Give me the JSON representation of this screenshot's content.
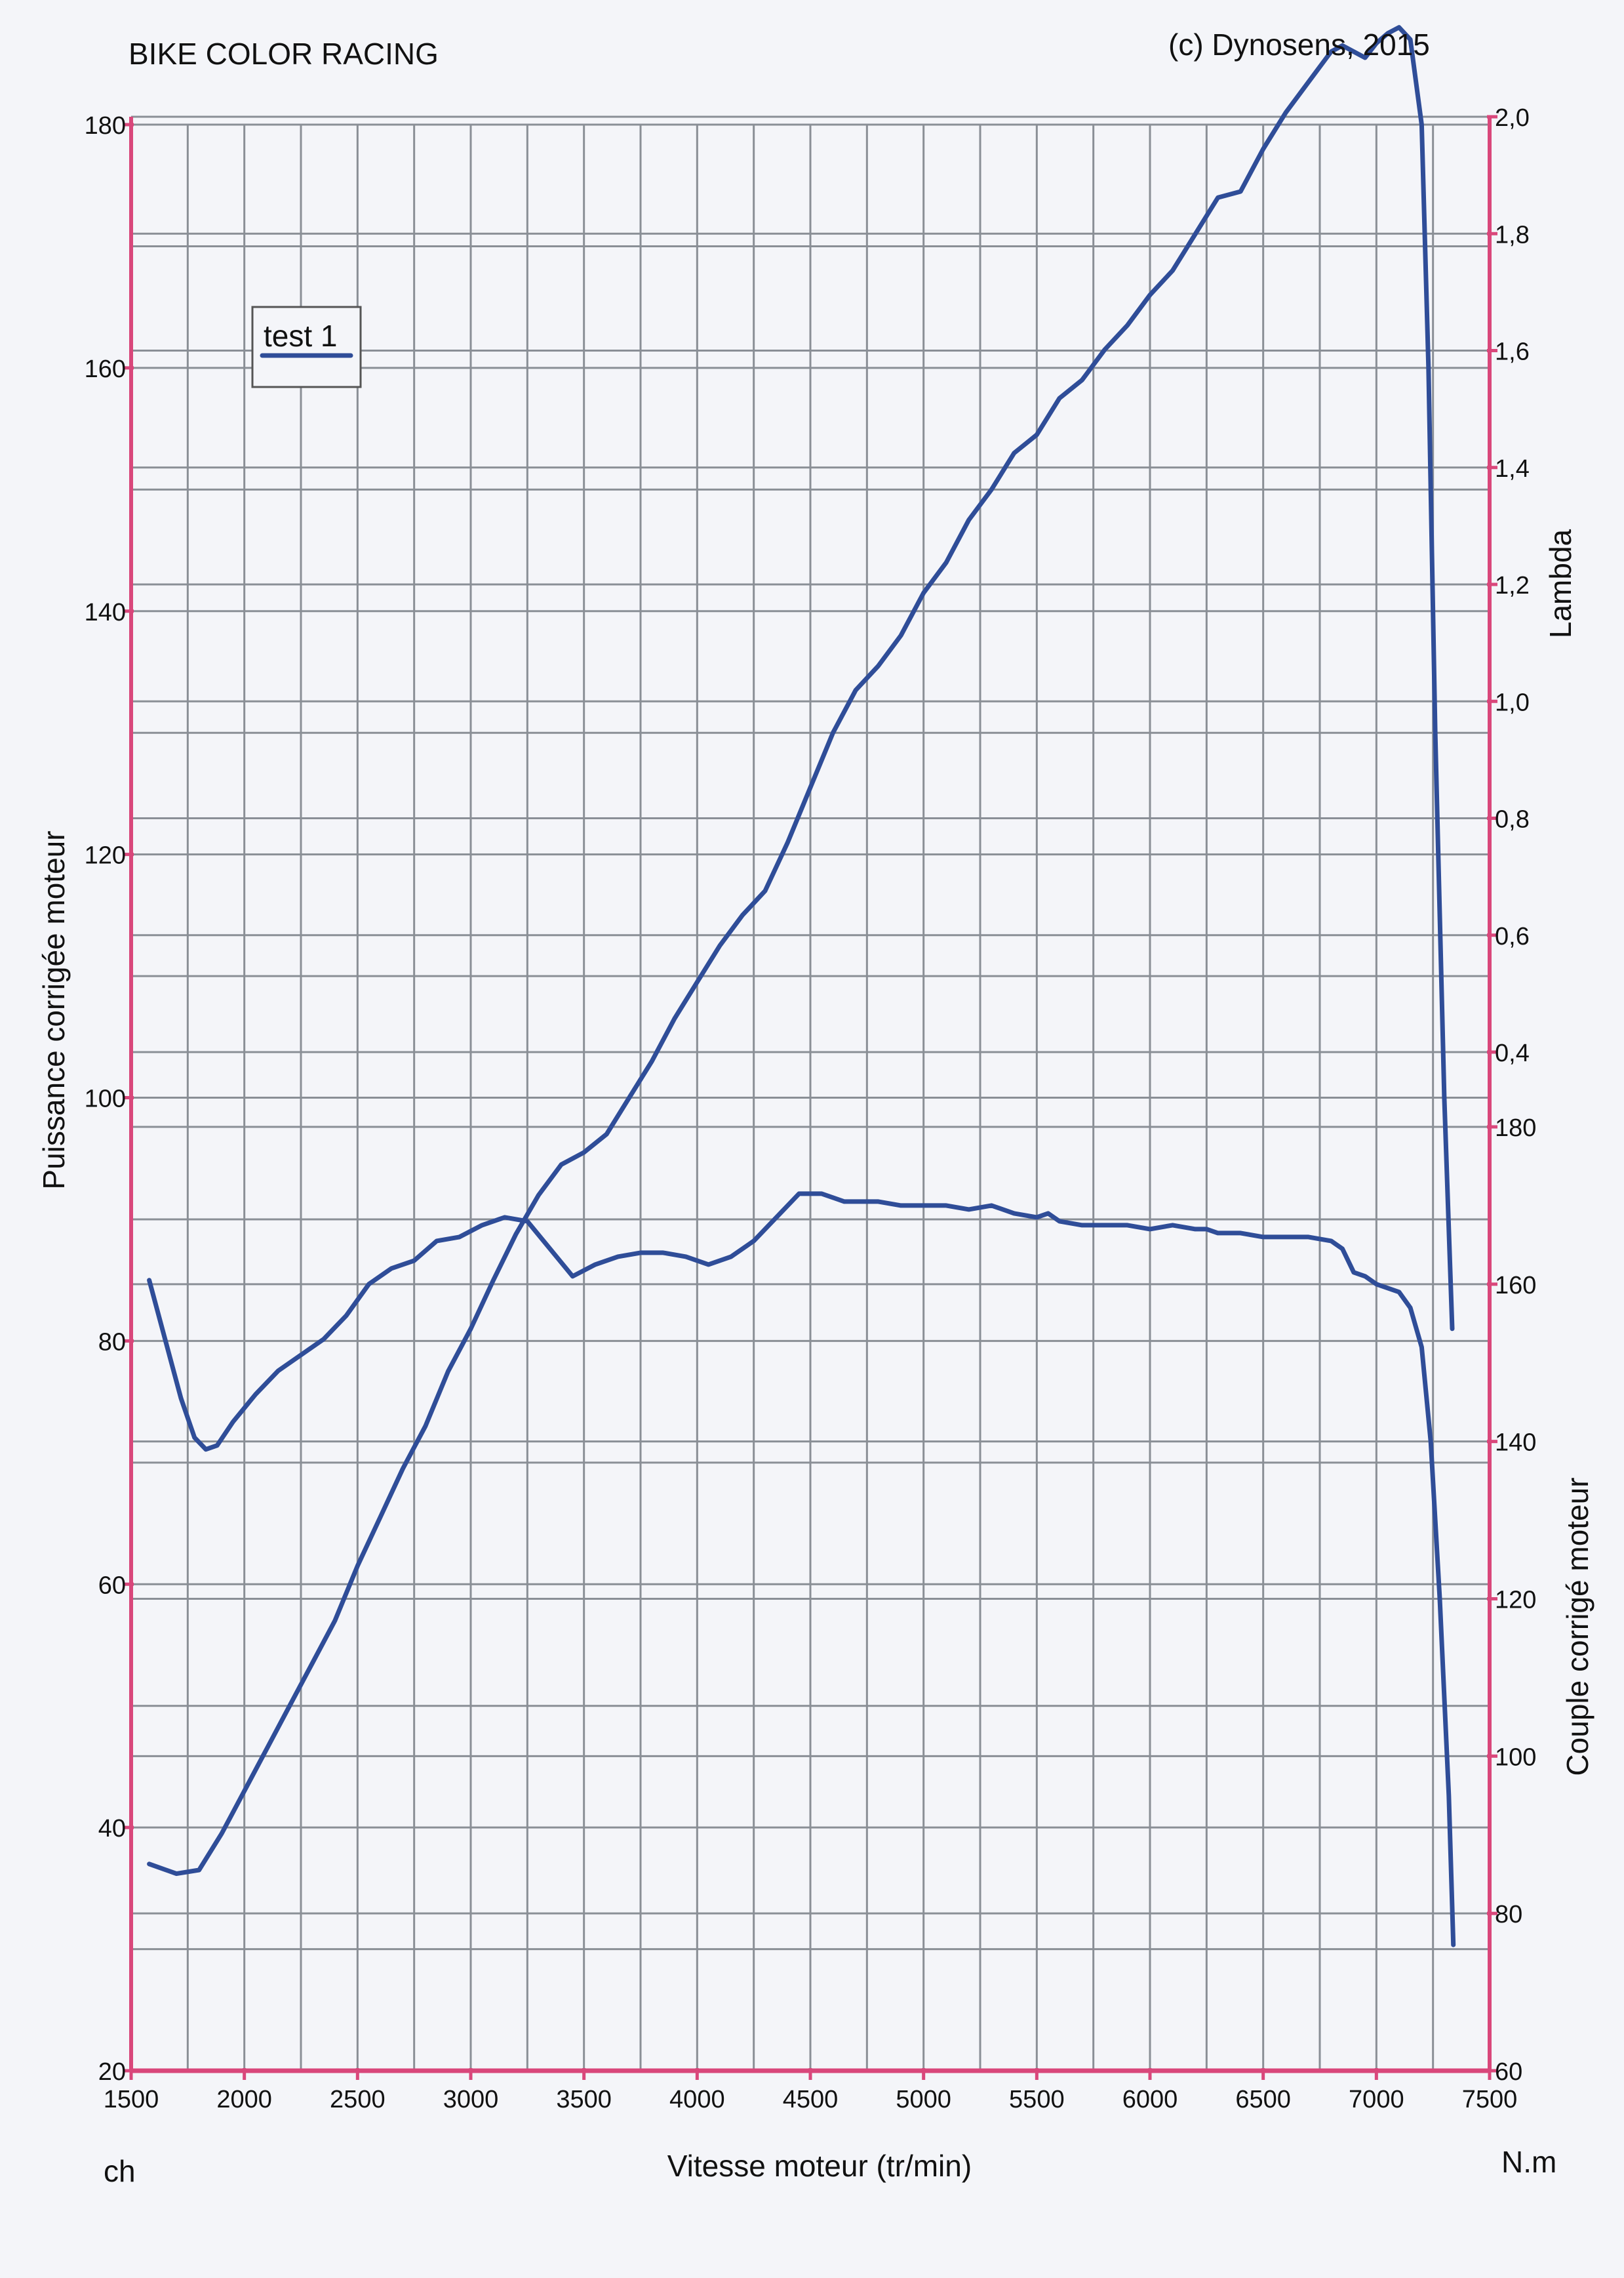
{
  "header": {
    "title": "BIKE COLOR RACING",
    "copyright": "(c) Dynosens, 2015"
  },
  "chart_data": {
    "type": "line",
    "title": "BIKE COLOR RACING",
    "xlabel": "Vitesse moteur (tr/min)",
    "xlim": [
      1500,
      7500
    ],
    "x_ticks": [
      1500,
      2000,
      2500,
      3000,
      3500,
      4000,
      4500,
      5000,
      5500,
      6000,
      6500,
      7000,
      7500
    ],
    "grid": true,
    "legend": {
      "position": "top-left",
      "entries": [
        "test 1"
      ]
    },
    "units": {
      "left": "ch",
      "right": "N.m"
    },
    "axes": {
      "power": {
        "label": "Puissance corrigée moteur",
        "range": [
          20,
          180
        ],
        "ticks": [
          "20",
          "40",
          "60",
          "80",
          "100",
          "120",
          "140",
          "160",
          "180"
        ]
      },
      "torque": {
        "label": "Couple corrigé moteur",
        "range": [
          60,
          180
        ],
        "ticks": [
          "60",
          "80",
          "100",
          "120",
          "140",
          "160",
          "180"
        ]
      },
      "lambda": {
        "label": "Lambda",
        "range": [
          0.3,
          2.0
        ],
        "ticks": [
          "0,4",
          "0,6",
          "0,8",
          "1,0",
          "1,2",
          "1,4",
          "1,6",
          "1,8",
          "2,0"
        ]
      }
    },
    "series": [
      {
        "name": "test 1",
        "quantity": "power",
        "color": "#2f4d98",
        "x": [
          1580,
          1700,
          1800,
          1900,
          2000,
          2100,
          2200,
          2300,
          2400,
          2500,
          2600,
          2700,
          2800,
          2900,
          3000,
          3100,
          3200,
          3300,
          3400,
          3500,
          3600,
          3700,
          3800,
          3900,
          4000,
          4100,
          4200,
          4300,
          4400,
          4500,
          4600,
          4700,
          4800,
          4900,
          5000,
          5100,
          5200,
          5300,
          5400,
          5500,
          5600,
          5700,
          5800,
          5900,
          6000,
          6100,
          6200,
          6300,
          6400,
          6500,
          6600,
          6700,
          6800,
          6850,
          6950,
          7000,
          7050,
          7100,
          7150,
          7200,
          7230,
          7260,
          7300,
          7335
        ],
        "values": [
          37,
          36.2,
          36.5,
          39.5,
          43,
          46.5,
          50,
          53.5,
          57,
          61.5,
          65.5,
          69.5,
          73,
          77.5,
          81,
          85,
          88.8,
          92,
          94.5,
          95.5,
          97,
          100,
          103,
          106.5,
          109.5,
          112.5,
          115,
          117,
          121,
          125.5,
          130,
          133.5,
          135.5,
          138,
          141.5,
          144,
          147.5,
          150,
          153,
          154.5,
          157.5,
          159,
          161.5,
          163.5,
          166,
          168,
          171,
          174,
          174.5,
          178,
          181,
          183.5,
          186,
          186.5,
          185.5,
          186.7,
          187.5,
          188,
          187,
          180,
          160,
          130,
          100,
          81
        ]
      },
      {
        "name": "test 1",
        "quantity": "torque",
        "color": "#2f4d98",
        "x": [
          1580,
          1650,
          1720,
          1780,
          1830,
          1880,
          1950,
          2050,
          2150,
          2250,
          2350,
          2450,
          2550,
          2650,
          2750,
          2850,
          2950,
          3050,
          3150,
          3250,
          3350,
          3450,
          3550,
          3650,
          3750,
          3850,
          3950,
          4050,
          4150,
          4250,
          4350,
          4450,
          4550,
          4650,
          4700,
          4800,
          4900,
          5000,
          5100,
          5200,
          5300,
          5400,
          5500,
          5550,
          5600,
          5700,
          5800,
          5900,
          6000,
          6100,
          6200,
          6250,
          6300,
          6400,
          6500,
          6600,
          6700,
          6800,
          6850,
          6900,
          6950,
          7000,
          7050,
          7100,
          7150,
          7200,
          7240,
          7280,
          7320,
          7340
        ],
        "values": [
          160.5,
          153,
          145.5,
          140.5,
          139,
          139.5,
          142.5,
          146,
          149,
          151,
          153,
          156,
          160,
          162,
          163,
          165.5,
          166,
          167.5,
          168.5,
          168,
          164.5,
          161,
          162.5,
          163.5,
          164,
          164,
          163.5,
          162.5,
          163.5,
          165.5,
          168.5,
          171.5,
          171.5,
          170.5,
          170.5,
          170.5,
          170,
          170,
          170,
          169.5,
          170,
          169,
          168.5,
          169,
          168,
          167.5,
          167.5,
          167.5,
          167,
          167.5,
          167,
          167,
          166.5,
          166.5,
          166,
          166,
          166,
          165.5,
          164.5,
          161.5,
          161,
          160,
          159.5,
          159,
          157,
          152,
          140,
          120,
          95,
          76
        ]
      }
    ]
  }
}
